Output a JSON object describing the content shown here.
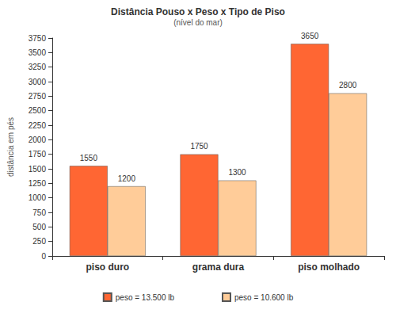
{
  "chart_data": {
    "type": "bar",
    "title": "Distância Pouso x Peso x Tipo de Piso",
    "subtitle": "(nível do mar)",
    "y_label": "distância em pés",
    "categories": [
      "piso duro",
      "grama dura",
      "piso molhado"
    ],
    "series": [
      {
        "name": "peso = 13.500 lb",
        "color": "#ff6633",
        "values": [
          1550,
          1750,
          3650
        ]
      },
      {
        "name": "peso = 10.600 lb",
        "color": "#ffcc99",
        "values": [
          1200,
          1300,
          2800
        ]
      }
    ],
    "ylim": [
      0,
      3750
    ],
    "yticks": [
      0,
      250,
      500,
      750,
      1000,
      1250,
      1500,
      1750,
      2000,
      2250,
      2500,
      2750,
      3000,
      3250,
      3500,
      3750
    ],
    "grid": false,
    "legend": "bottom",
    "data_labels": true
  }
}
